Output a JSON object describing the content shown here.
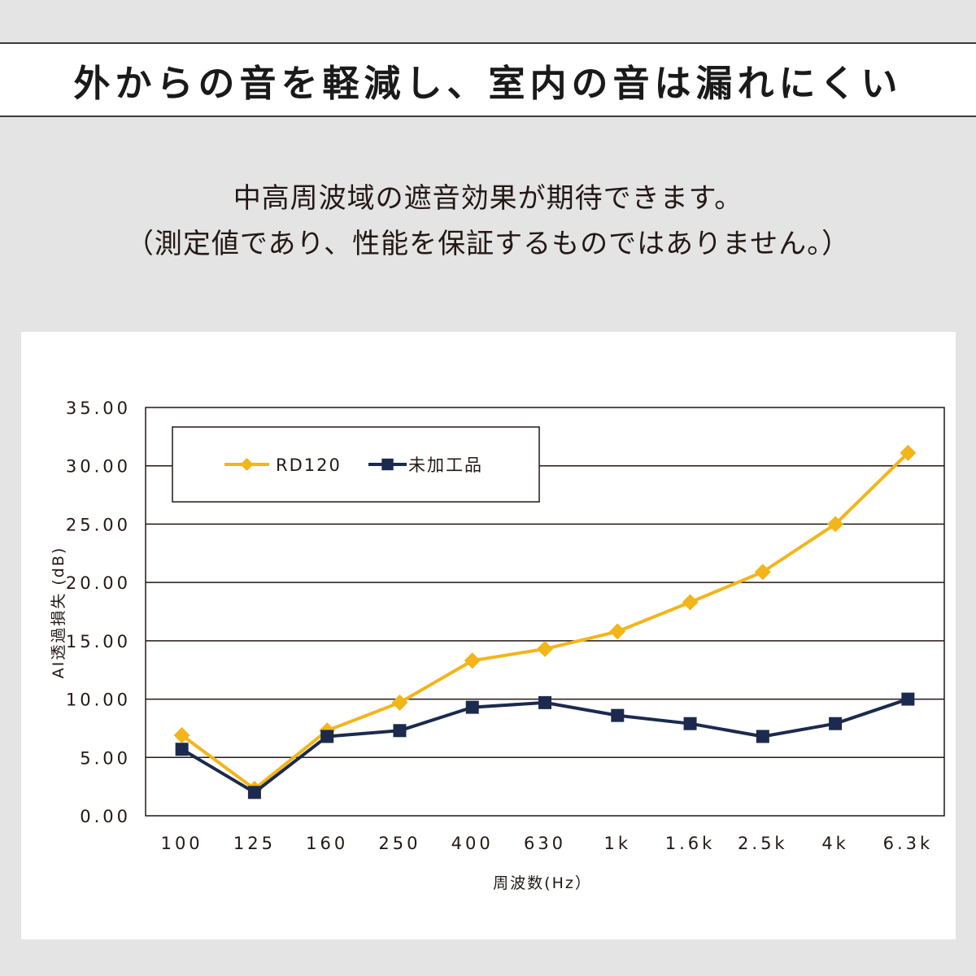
{
  "header": {
    "title": "外からの音を軽減し、室内の音は漏れにくい",
    "subtitle_line1": "中高周波域の遮音効果が期待できます。",
    "subtitle_line2": "（測定値であり、性能を保証するものではありません。）"
  },
  "colors": {
    "rd120": "#f2b51a",
    "untreated": "#1b2a4e",
    "grid": "#231815"
  },
  "chart_data": {
    "type": "line",
    "title": "",
    "xlabel": "周波数(Hz）",
    "ylabel": "AI透過損失 (dB)",
    "ylim": [
      0,
      35
    ],
    "y_ticks": [
      "0.00",
      "5.00",
      "10.00",
      "15.00",
      "20.00",
      "25.00",
      "30.00",
      "35.00"
    ],
    "grid": true,
    "legend_position": "top-left",
    "categories": [
      "100",
      "125",
      "160",
      "250",
      "400",
      "630",
      "1k",
      "1.6k",
      "2.5k",
      "4k",
      "6.3k"
    ],
    "series": [
      {
        "name": "RD120",
        "marker": "diamond",
        "color": "#f2b51a",
        "values": [
          6.9,
          2.3,
          7.3,
          9.7,
          13.3,
          14.3,
          15.8,
          18.3,
          20.9,
          25.0,
          31.1
        ]
      },
      {
        "name": "未加工品",
        "marker": "square",
        "color": "#1b2a4e",
        "values": [
          5.7,
          2.0,
          6.8,
          7.3,
          9.3,
          9.7,
          8.6,
          7.9,
          6.8,
          7.9,
          10.0
        ]
      }
    ]
  }
}
